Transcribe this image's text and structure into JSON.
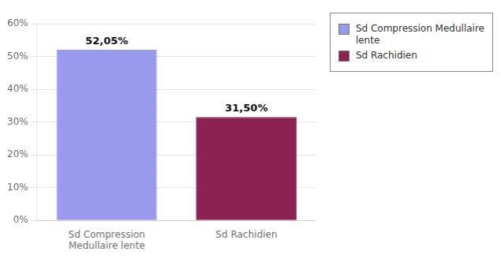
{
  "chart_data": {
    "type": "bar",
    "categories": [
      "Sd Compression\nMedullaire lente",
      "Sd Rachidien"
    ],
    "series": [
      {
        "name": "Sd Compression Medullaire\nlente",
        "color": "#9999ee",
        "values": [
          52.05,
          null
        ],
        "value_labels": [
          "52,05%",
          null
        ]
      },
      {
        "name": "Sd Rachidien",
        "color": "#8b2252",
        "values": [
          null,
          31.5
        ],
        "value_labels": [
          null,
          "31,50%"
        ]
      }
    ],
    "ylim": [
      0,
      60
    ],
    "yticks": [
      {
        "value": 0,
        "label": "0%"
      },
      {
        "value": 10,
        "label": "10%"
      },
      {
        "value": 20,
        "label": "20%"
      },
      {
        "value": 30,
        "label": "30%"
      },
      {
        "value": 40,
        "label": "40%"
      },
      {
        "value": 50,
        "label": "50%"
      },
      {
        "value": 60,
        "label": "60%"
      }
    ],
    "grid": true,
    "data_labels": true,
    "legend": "right"
  }
}
